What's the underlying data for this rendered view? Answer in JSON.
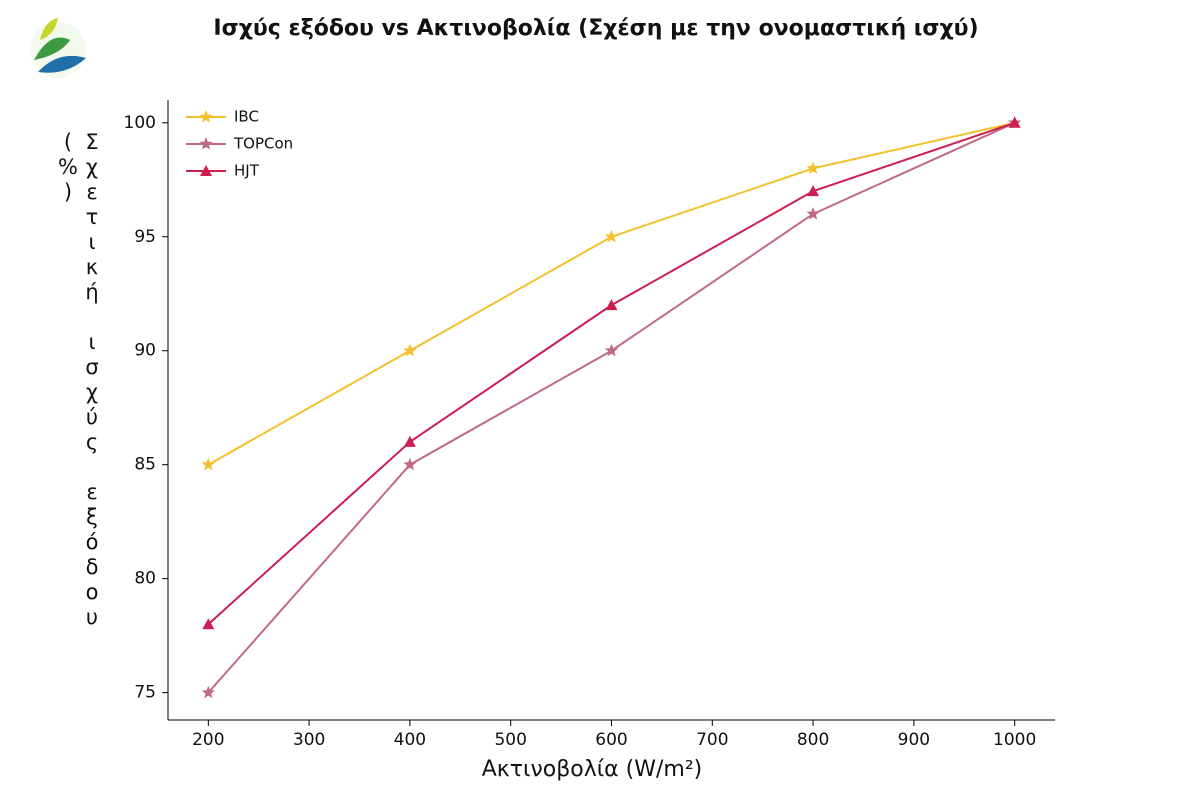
{
  "chart_data": {
    "type": "line",
    "title": "Ισχύς εξόδου vs Ακτινοβολία (Σχέση με την ονομαστική ισχύ)",
    "x_label": "Ακτινοβολία (W/m²)",
    "y_label": "Σχετική ισχύς εξόδου (%)",
    "x": [
      200,
      400,
      600,
      800,
      1000
    ],
    "series": [
      {
        "name": "IBC",
        "color": "#f2c12e",
        "values": [
          85,
          90,
          95,
          98,
          100
        ]
      },
      {
        "name": "TOPCon",
        "color": "#c06a86",
        "values": [
          75,
          85,
          90,
          96,
          100
        ]
      },
      {
        "name": "HJT",
        "color": "#cc1f4f",
        "values": [
          78,
          86,
          92,
          97,
          100
        ]
      }
    ],
    "xlim": [
      160,
      1040
    ],
    "xticks": [
      200,
      300,
      400,
      500,
      600,
      700,
      800,
      900,
      1000
    ],
    "ylim": [
      73.8,
      101
    ],
    "yticks": [
      75,
      80,
      85,
      90,
      95,
      100
    ],
    "legend": "upper left"
  }
}
